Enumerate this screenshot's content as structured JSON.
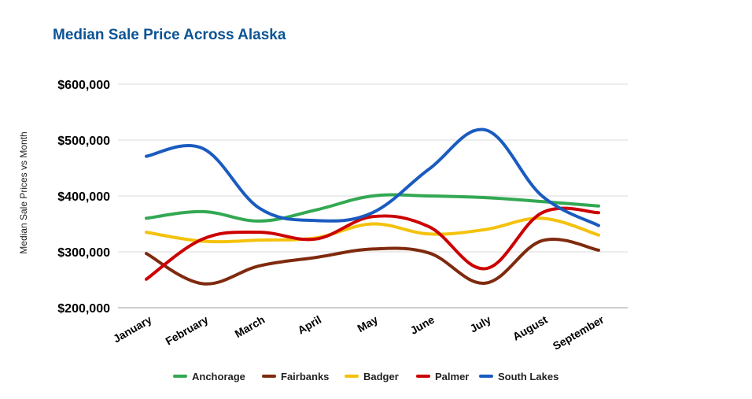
{
  "chart_data": {
    "type": "line",
    "title": "Median Sale Price Across Alaska",
    "xlabel": "",
    "ylabel": "Median Sale Prices vs Month",
    "categories": [
      "January",
      "February",
      "March",
      "April",
      "May",
      "June",
      "July",
      "August",
      "September"
    ],
    "ylim": [
      200000,
      600000
    ],
    "yticks": [
      200000,
      300000,
      400000,
      500000,
      600000
    ],
    "ytick_labels": [
      "$200,000",
      "$300,000",
      "$400,000",
      "$500,000",
      "$600,000"
    ],
    "grid": true,
    "legend_position": "bottom",
    "smooth": true,
    "series": [
      {
        "name": "Anchorage",
        "color": "#33a853",
        "values": [
          360000,
          372000,
          355000,
          375000,
          400000,
          400000,
          397000,
          390000,
          382000
        ]
      },
      {
        "name": "Fairbanks",
        "color": "#7f2a0e",
        "values": [
          297000,
          243000,
          275000,
          290000,
          305000,
          298000,
          244000,
          320000,
          303000
        ]
      },
      {
        "name": "Badger",
        "color": "#f4c20d",
        "values": [
          335000,
          319000,
          321000,
          325000,
          350000,
          332000,
          340000,
          360000,
          330000
        ]
      },
      {
        "name": "Palmer",
        "color": "#cc0000",
        "values": [
          251000,
          323000,
          335000,
          323000,
          363000,
          345000,
          270000,
          370000,
          370000
        ]
      },
      {
        "name": "South Lakes",
        "color": "#1a5bc0",
        "values": [
          471000,
          485000,
          378000,
          356000,
          370000,
          448000,
          518000,
          400000,
          347000
        ]
      }
    ]
  }
}
